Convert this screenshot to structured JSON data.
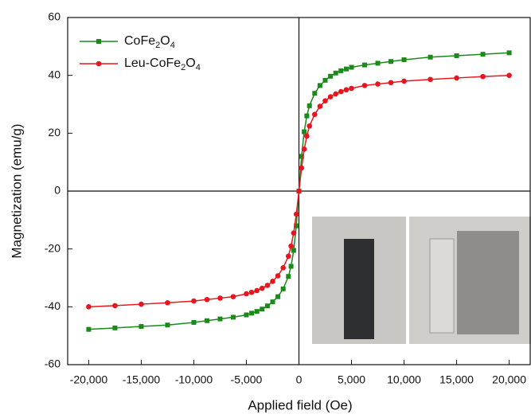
{
  "chart_data": {
    "type": "line",
    "x_label": "Applied field (Oe)",
    "y_label": "Magnetization (emu/g)",
    "x": [
      -20000,
      -17500,
      -15000,
      -12500,
      -10000,
      -8750,
      -7500,
      -6250,
      -5000,
      -4500,
      -4000,
      -3500,
      -3000,
      -2500,
      -2000,
      -1500,
      -1000,
      -750,
      -500,
      -250,
      0,
      250,
      500,
      750,
      1000,
      1500,
      2000,
      2500,
      3000,
      3500,
      4000,
      4500,
      5000,
      6250,
      7500,
      8750,
      10000,
      12500,
      15000,
      17500,
      20000
    ],
    "series": [
      {
        "name": "CoFe2O4",
        "color": "#1a8a1a",
        "marker": "square",
        "values": [
          -47.8,
          -47.3,
          -46.8,
          -46.3,
          -45.4,
          -44.8,
          -44.2,
          -43.6,
          -42.8,
          -42.2,
          -41.6,
          -40.8,
          -39.7,
          -38.3,
          -36.5,
          -33.8,
          -29.5,
          -26,
          -20.5,
          -12,
          0,
          12,
          20.5,
          26,
          29.5,
          33.8,
          36.5,
          38.3,
          39.7,
          40.8,
          41.6,
          42.2,
          42.8,
          43.6,
          44.2,
          44.8,
          45.4,
          46.3,
          46.8,
          47.3,
          47.8
        ]
      },
      {
        "name": "Leu-CoFe2O4",
        "color": "#e8141e",
        "marker": "circle",
        "values": [
          -40,
          -39.6,
          -39.1,
          -38.6,
          -38,
          -37.5,
          -37,
          -36.5,
          -35.5,
          -35,
          -34.4,
          -33.6,
          -32.6,
          -31.2,
          -29.3,
          -26.5,
          -22.5,
          -19,
          -14.5,
          -8,
          0,
          8,
          14.5,
          19,
          22.5,
          26.5,
          29.3,
          31.2,
          32.6,
          33.6,
          34.4,
          35,
          35.5,
          36.5,
          37,
          37.5,
          38,
          38.6,
          39.1,
          39.6,
          40
        ]
      }
    ],
    "xlim": [
      -22000,
      22000
    ],
    "ylim": [
      -60,
      60
    ],
    "xticks": [
      {
        "value": -20000,
        "label": "-20,000"
      },
      {
        "value": -15000,
        "label": "-15,000"
      },
      {
        "value": -10000,
        "label": "-10,000"
      },
      {
        "value": -5000,
        "label": "-5,000"
      },
      0,
      {
        "value": 5000,
        "label": "5,000"
      },
      {
        "value": 10000,
        "label": "10,000"
      },
      {
        "value": 15000,
        "label": "15,000"
      },
      {
        "value": 20000,
        "label": "20,000"
      }
    ],
    "yticks": [
      -60,
      -40,
      -20,
      0,
      20,
      40,
      60
    ],
    "legend": "upper left"
  }
}
